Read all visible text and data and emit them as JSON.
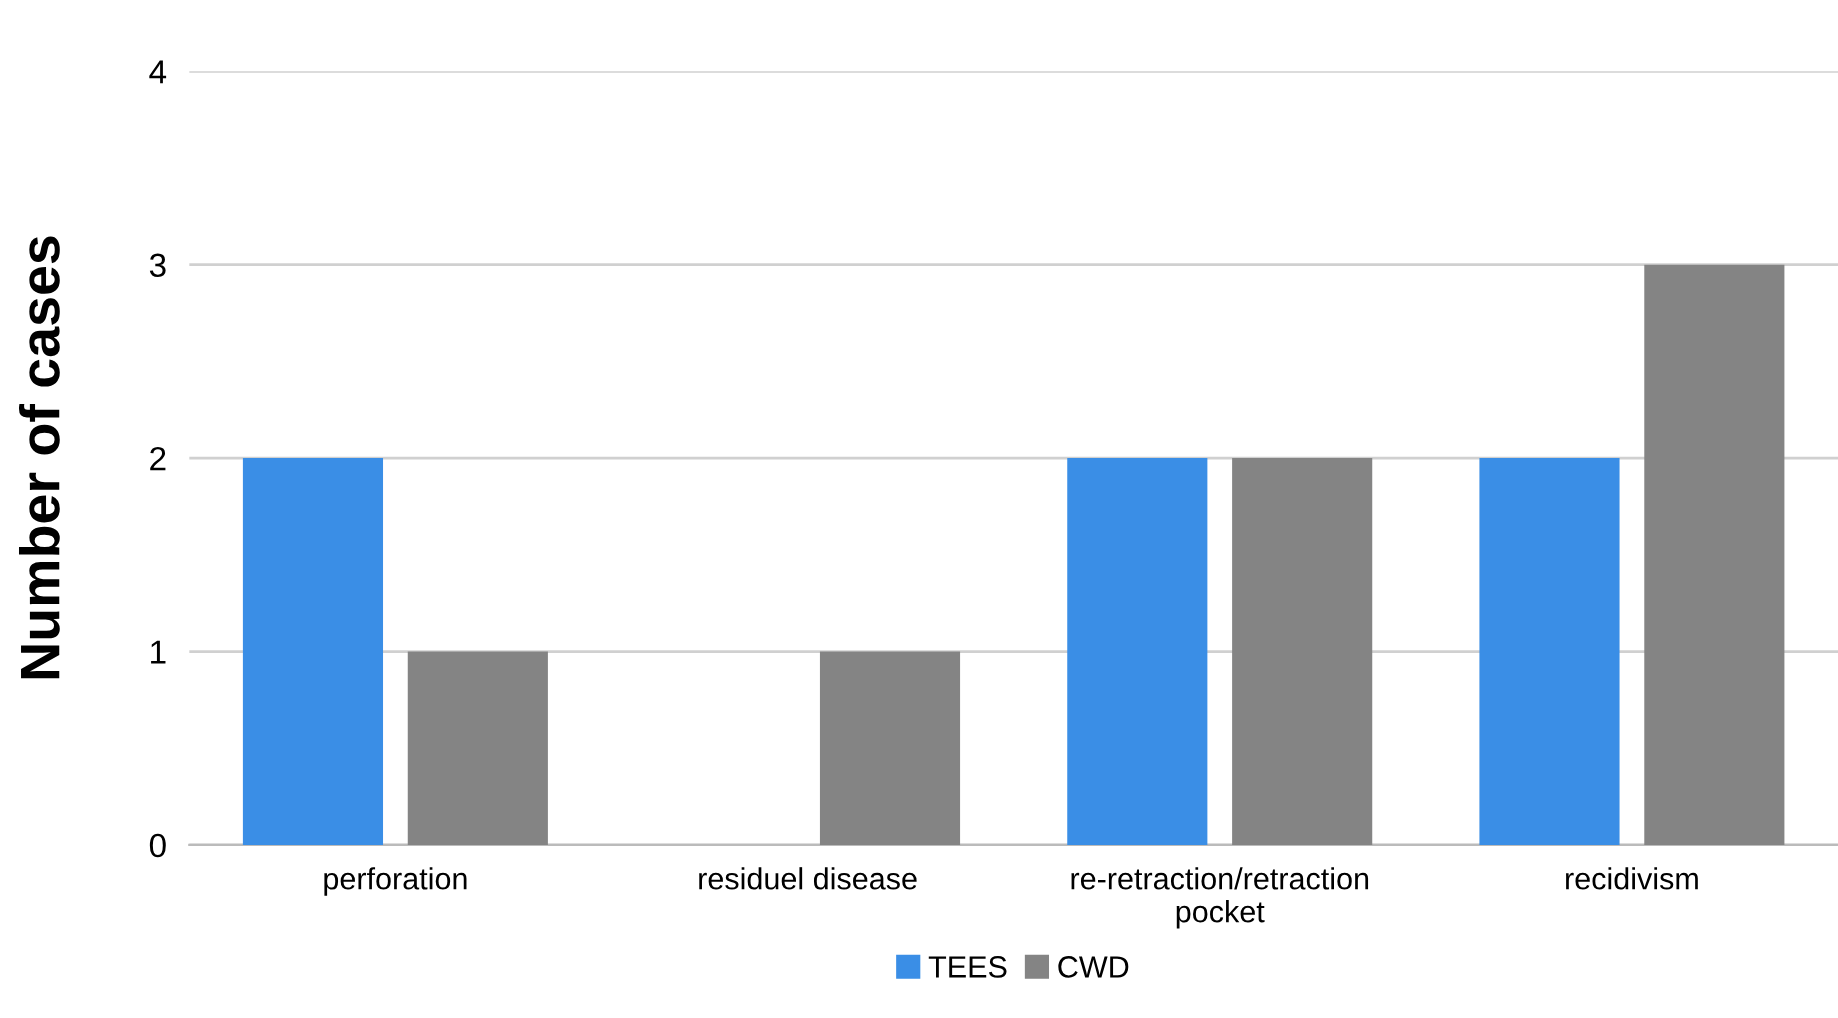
{
  "chart_data": {
    "type": "bar",
    "ylabel": "Number of cases",
    "categories": [
      "perforation",
      "residuel disease",
      "re-retraction/retraction pocket",
      "recidivism"
    ],
    "series": [
      {
        "name": "TEES",
        "color": "#3a8ee6",
        "values": [
          2,
          0,
          2,
          2
        ]
      },
      {
        "name": "CWD",
        "color": "#848484",
        "values": [
          1,
          1,
          2,
          3
        ]
      }
    ],
    "ylim": [
      0,
      4
    ],
    "yticks": [
      0,
      1,
      2,
      3,
      4
    ],
    "grid": "y",
    "legend": "bottom"
  }
}
